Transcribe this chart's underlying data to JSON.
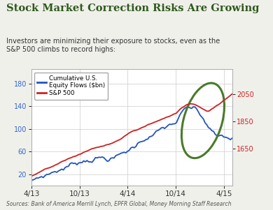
{
  "title": "Stock Market Correction Risks Are Growing",
  "subtitle": "Investors are minimizing their exposure to stocks, even as the\nS&P 500 climbs to record highs:",
  "source_text": "Sources: Bank of America Merrill Lynch, EPFR Global, Money Morning Staff Research",
  "title_color": "#2d5a1b",
  "subtitle_color": "#333333",
  "background_color": "#f0f0eb",
  "chart_bg": "#ffffff",
  "left_axis_color": "#3366cc",
  "right_axis_color": "#cc2222",
  "left_yticks": [
    20,
    60,
    100,
    140,
    180
  ],
  "left_ylim": [
    0,
    205
  ],
  "right_yticks": [
    1650,
    1850,
    2050
  ],
  "right_ylim": [
    1380,
    2230
  ],
  "xtick_labels": [
    "4/13",
    "10/13",
    "4/14",
    "10/14",
    "4/15"
  ],
  "legend_line1": "Cumulative U.S.\nEquity Flows ($bn)",
  "legend_line2": "S&P 500",
  "ellipse_color": "#4a7a2a",
  "ellipse_lw": 2.2,
  "green_bar_color": "#2d5a1b"
}
